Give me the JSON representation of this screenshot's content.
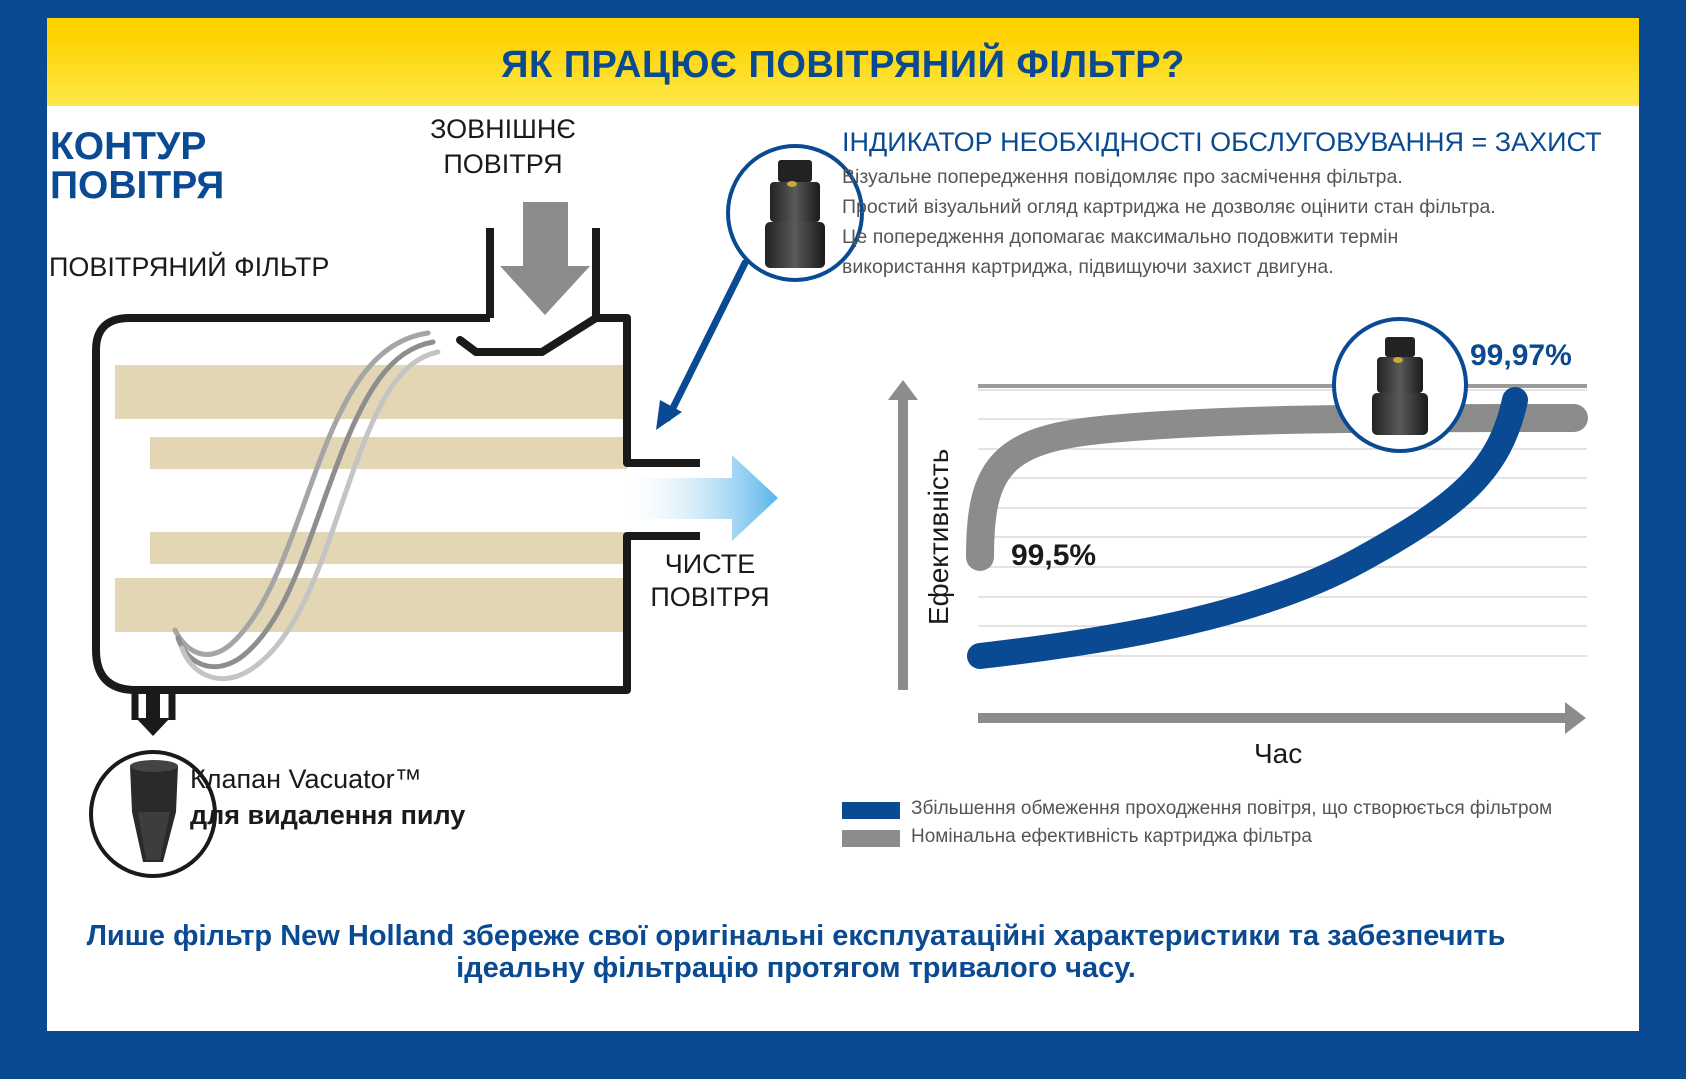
{
  "header": {
    "title": "ЯК ПРАЦЮЄ ПОВІТРЯНИЙ ФІЛЬТР?"
  },
  "circuit": {
    "title_line1": "КОНТУР",
    "title_line2": "ПОВІТРЯ",
    "outside_air_line1": "ЗОВНІШНЄ",
    "outside_air_line2": "ПОВІТРЯ",
    "air_filter_label": "ПОВІТРЯНИЙ ФІЛЬТР",
    "clean_air_line1": "ЧИСТЕ",
    "clean_air_line2": "ПОВІТРЯ",
    "valve_name": "Клапан Vacuator™",
    "valve_desc": "для видалення пилу"
  },
  "indicator": {
    "title": "ІНДИКАТОР НЕОБХІДНОСТІ ОБСЛУГОВУВАННЯ = ЗАХИСТ",
    "desc_lines": [
      "Візуальне попередження повідомляє про засмічення фільтра.",
      "Простий візуальний огляд картриджа не дозволяє оцінити стан фільтра.",
      "Це попередження допомагає максимально подовжити термін",
      "використання картриджа, підвищуючи захист двигуна."
    ]
  },
  "chart_data": {
    "type": "line",
    "ylabel": "Ефективність",
    "xlabel": "Час",
    "annotations": {
      "start": "99,5%",
      "end": "99,97%"
    },
    "series": [
      {
        "name": "Збільшення обмеження проходження повітря, що створюється фільтром",
        "color": "#0a4a92"
      },
      {
        "name": "Номінальна ефективність картриджа фільтра",
        "color": "#8c8c8c"
      }
    ],
    "grid": true
  },
  "colors": {
    "brand_blue": "#0a4a92",
    "brand_yellow": "#ffd200",
    "grey": "#8c8c8c",
    "media": "#e3d6b5"
  },
  "footer": {
    "line1": "Лише фільтр New Holland збереже свої оригінальні експлуатаційні характеристики та забезпечить",
    "line2": "ідеальну фільтрацію протягом тривалого часу."
  }
}
